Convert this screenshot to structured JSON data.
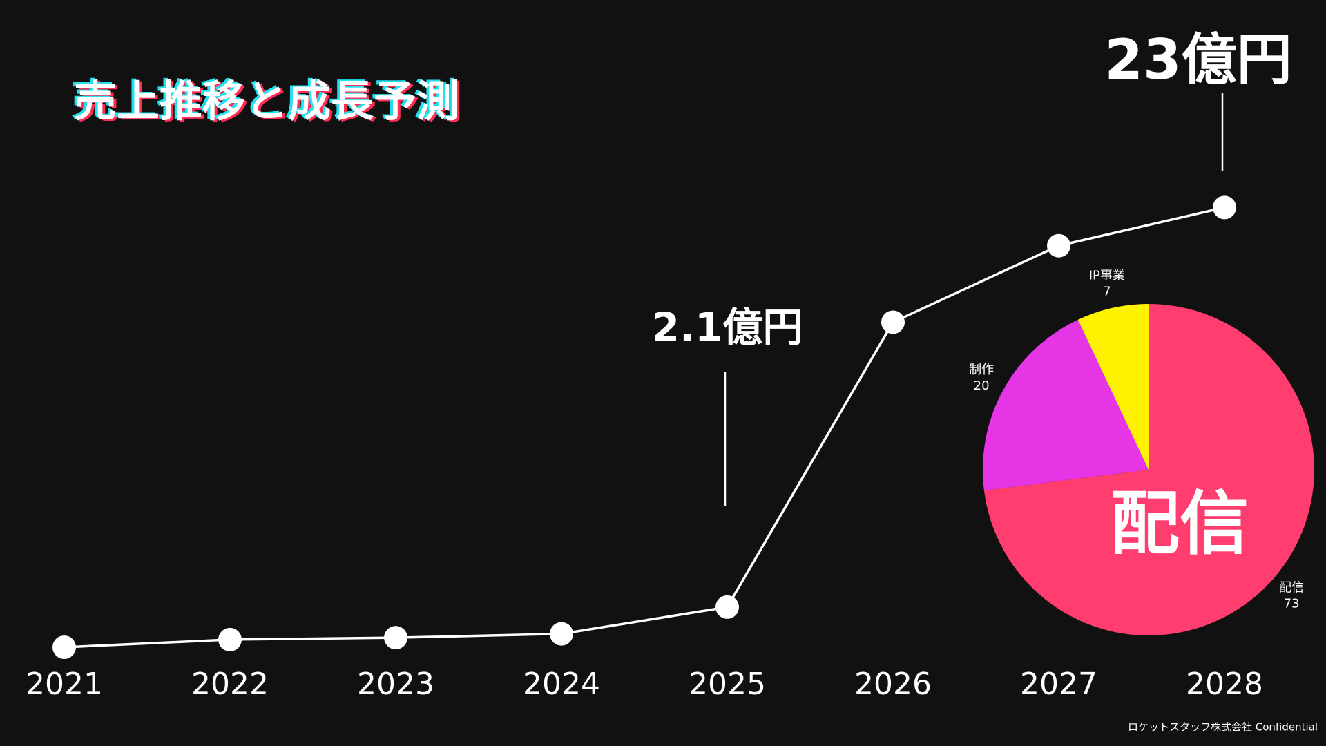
{
  "chart_data": [
    {
      "type": "line",
      "title": "売上推移と成長予測",
      "categories": [
        "2021",
        "2022",
        "2023",
        "2024",
        "2025",
        "2026",
        "2027",
        "2028"
      ],
      "values": [
        0,
        0.4,
        0.5,
        0.7,
        2.1,
        17,
        21,
        23
      ],
      "value_labels": [
        null,
        null,
        null,
        null,
        "2.1億円",
        null,
        null,
        "23億円"
      ],
      "color": "#ffffff",
      "ylim": [
        0,
        25
      ]
    },
    {
      "type": "pie",
      "categories": [
        "配信",
        "制作",
        "IP事業"
      ],
      "values": [
        73,
        20,
        7
      ],
      "colors": [
        "#ff3d6e",
        "#e535e5",
        "#fff200"
      ],
      "highlight": "配信"
    }
  ],
  "footer": "ロケットスタッフ株式会社 Confidential"
}
